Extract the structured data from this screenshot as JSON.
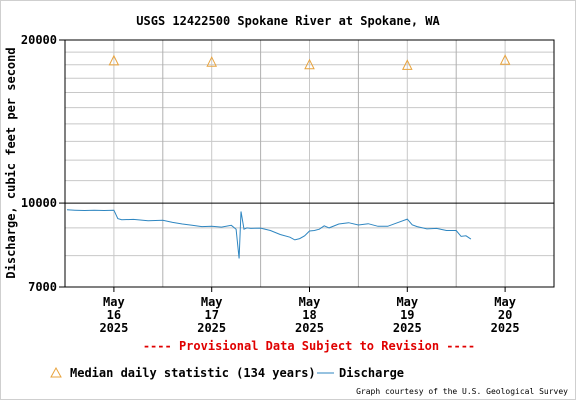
{
  "colors": {
    "discharge": "#2e86c1",
    "median": "#e8a33d",
    "provisional": "#e00000",
    "grid": "#c8c8c8"
  },
  "text": {
    "provisional": "---- Provisional Data Subject to Revision ----",
    "credit": "Graph courtesy of the U.S. Geological Survey"
  },
  "chart_data": {
    "type": "line",
    "title": "USGS 12422500 Spokane River at Spokane, WA",
    "ylabel": "Discharge, cubic feet per second",
    "xlabel": "",
    "yscale": "log",
    "ylim": [
      7000,
      20000
    ],
    "yticks": [
      "20000",
      "10000",
      "7000"
    ],
    "grid": true,
    "legend_position": "bottom",
    "x_ticks": [
      {
        "day": 16,
        "lines": [
          "May",
          "16",
          "2025"
        ]
      },
      {
        "day": 17,
        "lines": [
          "May",
          "17",
          "2025"
        ]
      },
      {
        "day": 18,
        "lines": [
          "May",
          "18",
          "2025"
        ]
      },
      {
        "day": 19,
        "lines": [
          "May",
          "19",
          "2025"
        ]
      },
      {
        "day": 20,
        "lines": [
          "May",
          "20",
          "2025"
        ]
      }
    ],
    "xlim": [
      15.5,
      20.5
    ],
    "series": [
      {
        "name": "Median daily statistic (134 years)",
        "kind": "marker-triangle",
        "x": [
          16,
          17,
          18,
          19,
          20
        ],
        "y": [
          18300,
          18200,
          18000,
          17950,
          18350
        ]
      },
      {
        "name": "Discharge",
        "kind": "line",
        "x": [
          15.52,
          15.6,
          15.7,
          15.8,
          15.9,
          16.0,
          16.04,
          16.08,
          16.2,
          16.35,
          16.5,
          16.6,
          16.7,
          16.8,
          16.9,
          17.0,
          17.1,
          17.2,
          17.25,
          17.28,
          17.3,
          17.33,
          17.36,
          17.4,
          17.5,
          17.6,
          17.7,
          17.8,
          17.85,
          17.9,
          17.95,
          18.0,
          18.05,
          18.1,
          18.15,
          18.2,
          18.3,
          18.4,
          18.5,
          18.6,
          18.7,
          18.8,
          18.9,
          19.0,
          19.05,
          19.1,
          19.2,
          19.3,
          19.4,
          19.5,
          19.55,
          19.6,
          19.65
        ],
        "y": [
          9720,
          9700,
          9690,
          9700,
          9690,
          9700,
          9360,
          9320,
          9330,
          9280,
          9300,
          9210,
          9150,
          9100,
          9050,
          9060,
          9030,
          9100,
          8950,
          7900,
          9650,
          8950,
          9000,
          8980,
          8990,
          8900,
          8750,
          8650,
          8550,
          8600,
          8700,
          8880,
          8900,
          8950,
          9080,
          9000,
          9150,
          9200,
          9110,
          9160,
          9060,
          9060,
          9200,
          9340,
          9120,
          9050,
          8960,
          8980,
          8900,
          8900,
          8680,
          8700,
          8580
        ]
      }
    ]
  }
}
